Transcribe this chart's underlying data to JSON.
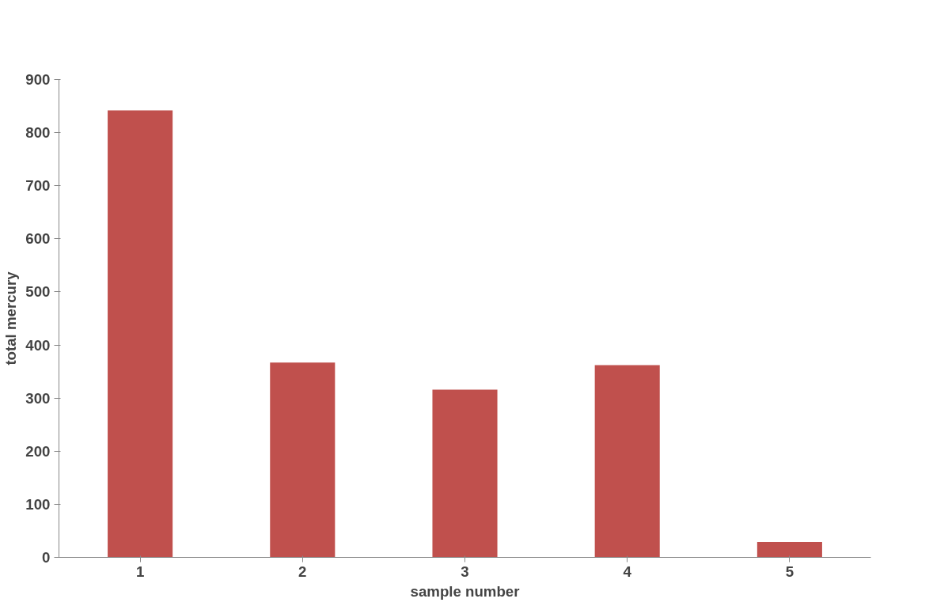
{
  "chart_data": {
    "type": "bar",
    "xlabel": "sample number",
    "ylabel": "total mercury",
    "categories": [
      "1",
      "2",
      "3",
      "4",
      "5"
    ],
    "values": [
      842,
      367,
      316,
      362,
      29
    ],
    "color": "#c0504d",
    "ylim": [
      0,
      900
    ],
    "yticks": [
      0,
      100,
      200,
      300,
      400,
      500,
      600,
      700,
      800,
      900
    ],
    "grid": false
  }
}
